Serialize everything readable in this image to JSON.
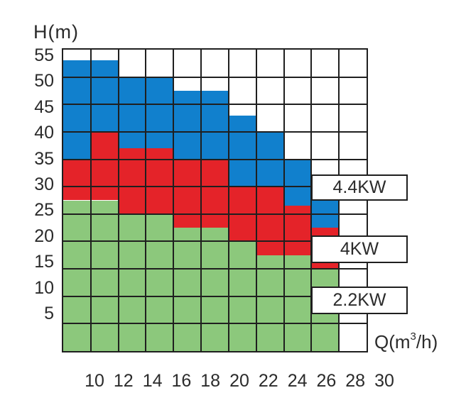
{
  "background": "#ffffff",
  "colors": {
    "blue_band": "#1180cd",
    "red_band": "#e42329",
    "green_band": "#8cc87c",
    "grid_line": "#1f1f1f",
    "text": "#2b2b2b",
    "label_box_bg": "#ffffff"
  },
  "legend_boxes": [
    {
      "label": "4.4KW",
      "band": "blue"
    },
    {
      "label": "4KW",
      "band": "red"
    },
    {
      "label": "2.2KW",
      "band": "green"
    }
  ],
  "chart_data": {
    "type": "area",
    "variant": "stepped stacked power-band selection chart (pump H-Q chart)",
    "title": "",
    "xlabel": "Q(m3/h)",
    "xlabel_parts": {
      "pre": "Q(m",
      "sup": "3",
      "post": "/h)"
    },
    "ylabel": "H(m)",
    "xlim": [
      8,
      30
    ],
    "ylim": [
      0,
      55
    ],
    "x_step": 2,
    "y_step": 5,
    "grid": true,
    "x_ticks": [
      10,
      12,
      14,
      16,
      18,
      20,
      22,
      24,
      26,
      28,
      30
    ],
    "y_ticks": [
      55,
      50,
      45,
      40,
      35,
      30,
      25,
      20,
      15,
      10,
      5
    ],
    "bands": [
      {
        "key": "green",
        "label": "2.2KW",
        "color": "#8cc87c"
      },
      {
        "key": "red",
        "label": "4KW",
        "color": "#e42329"
      },
      {
        "key": "blue",
        "label": "4.4KW",
        "color": "#1180cd"
      }
    ],
    "columns": [
      {
        "q_from": 8,
        "q_to": 10,
        "green_top": 27.5,
        "red_top": 35,
        "blue_top": 53
      },
      {
        "q_from": 10,
        "q_to": 12,
        "green_top": 27.5,
        "red_top": 40,
        "blue_top": 53
      },
      {
        "q_from": 12,
        "q_to": 14,
        "green_top": 25,
        "red_top": 37,
        "blue_top": 50
      },
      {
        "q_from": 14,
        "q_to": 16,
        "green_top": 25,
        "red_top": 37,
        "blue_top": 50
      },
      {
        "q_from": 16,
        "q_to": 18,
        "green_top": 22.5,
        "red_top": 35,
        "blue_top": 47.5
      },
      {
        "q_from": 18,
        "q_to": 20,
        "green_top": 22.5,
        "red_top": 35,
        "blue_top": 47.5
      },
      {
        "q_from": 20,
        "q_to": 22,
        "green_top": 20,
        "red_top": 30,
        "blue_top": 43
      },
      {
        "q_from": 22,
        "q_to": 24,
        "green_top": 17.5,
        "red_top": 30,
        "blue_top": 40
      },
      {
        "q_from": 24,
        "q_to": 26,
        "green_top": 17.5,
        "red_top": 26.5,
        "blue_top": 35
      },
      {
        "q_from": 26,
        "q_to": 28,
        "green_top": 15,
        "red_top": 22.5,
        "blue_top": 30
      },
      {
        "q_from": 28,
        "q_to": 30,
        "green_top": 0,
        "red_top": 0,
        "blue_top": 0
      }
    ]
  }
}
